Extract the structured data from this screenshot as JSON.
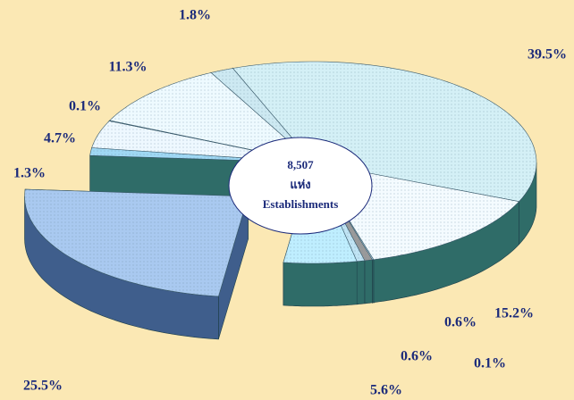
{
  "chart_data": {
    "type": "pie",
    "values": [
      39.5,
      15.2,
      0.1,
      0.6,
      0.6,
      5.6,
      25.5,
      1.3,
      4.7,
      0.1,
      11.3,
      1.8
    ],
    "value_labels": [
      "39.5%",
      "15.2%",
      "0.1%",
      "0.6%",
      "0.6%",
      "5.6%",
      "25.5%",
      "1.3%",
      "4.7%",
      "0.1%",
      "11.3%",
      "1.8%"
    ],
    "colors": [
      "#d4f0f6",
      "#f4fbff",
      "#b8d8e8",
      "#9a9a9a",
      "#c0e4f4",
      "#bfeeff",
      "#a9c9f0",
      "#9fd8f4",
      "#eef8ff",
      "#d8eef8",
      "#eefaff",
      "#cde9f2"
    ],
    "exploded": [
      6
    ],
    "annotations": [
      "8,507",
      "แห่ง",
      "Establishments"
    ]
  }
}
